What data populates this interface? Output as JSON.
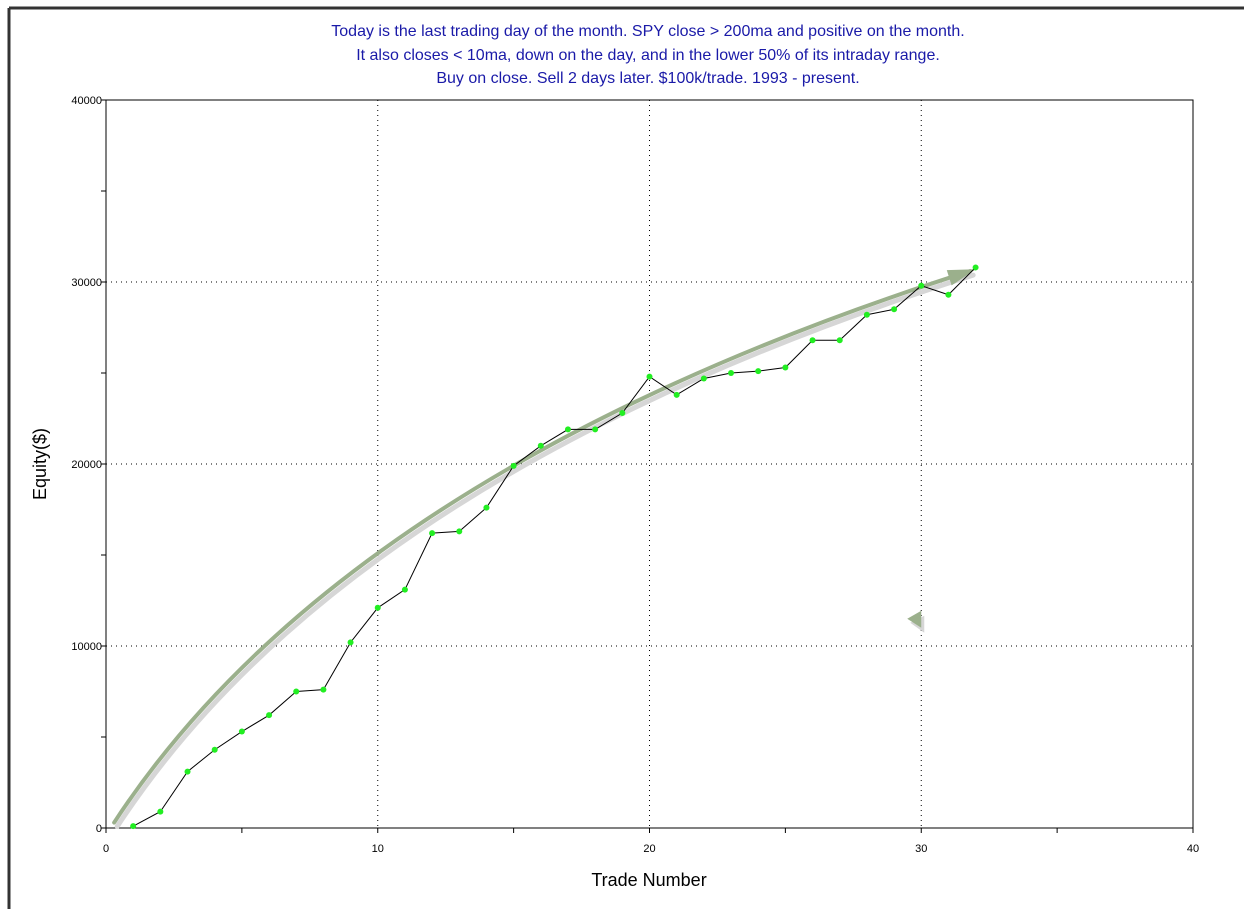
{
  "chart_data": {
    "type": "line",
    "title_lines": [
      "Today is the last trading day of the month. SPY close > 200ma and positive on the month.",
      "It also closes < 10ma, down on the day, and in the lower 50% of its intraday range.",
      "Buy on close. Sell 2 days later. $100k/trade. 1993 - present."
    ],
    "title_color": "#1a1aa8",
    "xlabel": "Trade Number",
    "ylabel": "Equity($)",
    "xlim": [
      0,
      40
    ],
    "ylim": [
      0,
      40000
    ],
    "x_ticks": [
      0,
      10,
      20,
      30,
      40
    ],
    "y_ticks": [
      0,
      10000,
      20000,
      30000,
      40000
    ],
    "grid": "dotted",
    "series": [
      {
        "x": [
          1,
          2,
          3,
          4,
          5,
          6,
          7,
          8,
          9,
          10,
          11,
          12,
          13,
          14,
          15,
          16,
          17,
          18,
          19,
          20,
          21,
          22,
          23,
          24,
          25,
          26,
          27,
          28,
          29,
          30,
          31,
          32
        ],
        "values": [
          100,
          900,
          3100,
          4300,
          5300,
          6200,
          7500,
          7600,
          10200,
          12100,
          13100,
          16200,
          16300,
          17600,
          19900,
          21000,
          21900,
          21900,
          22800,
          24800,
          23800,
          24700,
          25000,
          25100,
          25300,
          26800,
          26800,
          28200,
          28500,
          29800,
          29300,
          30800
        ],
        "line_color": "#000000",
        "marker_color": "#22ee22"
      }
    ],
    "annotations": [
      {
        "type": "trend-arrow",
        "color": "#9BB08C",
        "x": [
          0.3,
          31.8
        ],
        "y": [
          300,
          30600
        ]
      },
      {
        "type": "arrowhead-marker",
        "color": "#9BB08C",
        "x": 30,
        "y": 11500
      }
    ]
  }
}
